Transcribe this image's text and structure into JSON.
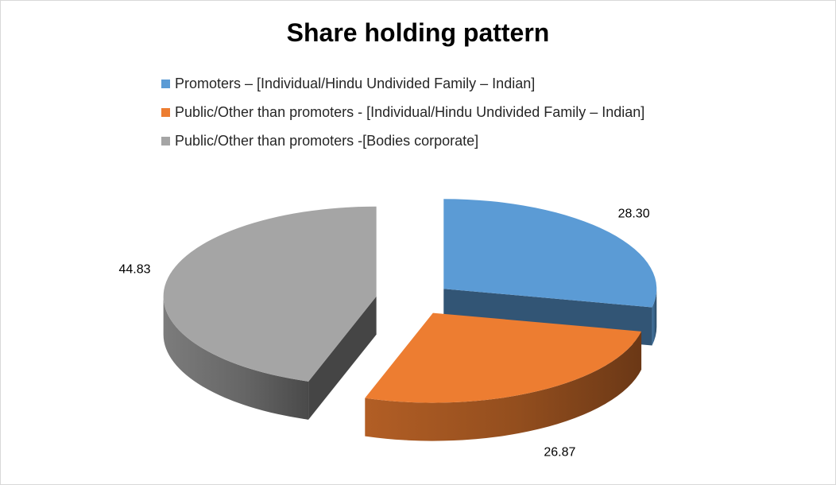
{
  "chart_data": {
    "type": "pie",
    "title": "Share holding pattern",
    "legend_position": "top",
    "style": "3d-exploded",
    "slices": [
      {
        "name": "Promoters – [Individual/Hindu Undivided Family – Indian]",
        "value": 28.3,
        "label": "28.30",
        "color": "#5b9bd5"
      },
      {
        "name": "Public/Other than promoters - [Individual/Hindu Undivided Family – Indian]",
        "value": 26.87,
        "label": "26.87",
        "color": "#ed7d31"
      },
      {
        "name": "Public/Other than promoters -[Bodies corporate]",
        "value": 44.83,
        "label": "44.83",
        "color": "#a5a5a5"
      }
    ]
  }
}
